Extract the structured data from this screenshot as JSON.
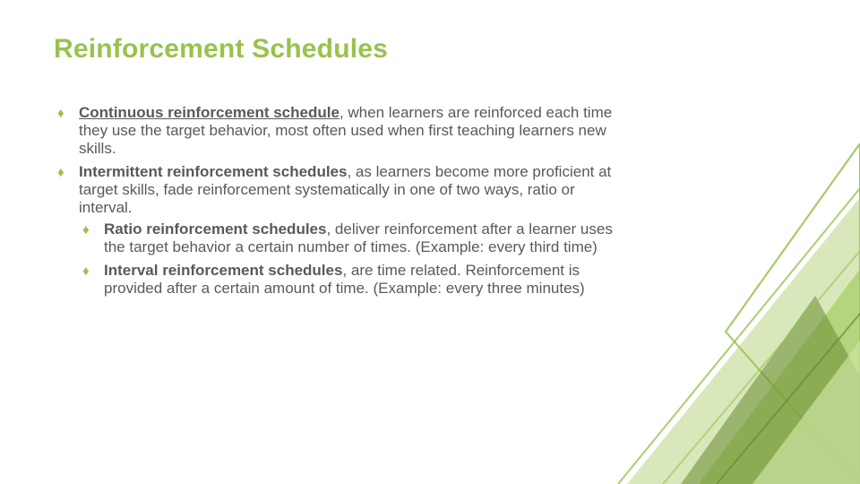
{
  "colors": {
    "accent": "#99c24d",
    "accent_dark": "#6a8a2f",
    "accent_light": "#cfe2a2",
    "text": "#595959",
    "bg": "#ffffff"
  },
  "title": "Reinforcement Schedules",
  "bullets": [
    {
      "bold_underlined": "Continuous reinforcement schedule",
      "rest": ", when learners are reinforced each time they use the target behavior, most often used when first teaching learners new skills."
    },
    {
      "bold": "Intermittent reinforcement schedules",
      "rest": ", as learners become more proficient at target skills, fade reinforcement systematically in one of two ways, ratio or interval.",
      "children": [
        {
          "bold": "Ratio reinforcement schedules",
          "rest": ", deliver reinforcement after a learner uses the target behavior a certain number of times. (Example: every third time)"
        },
        {
          "bold": "Interval reinforcement schedules",
          "rest": ", are time related. Reinforcement is provided after a certain amount of time. (Example: every three minutes)"
        }
      ]
    }
  ]
}
